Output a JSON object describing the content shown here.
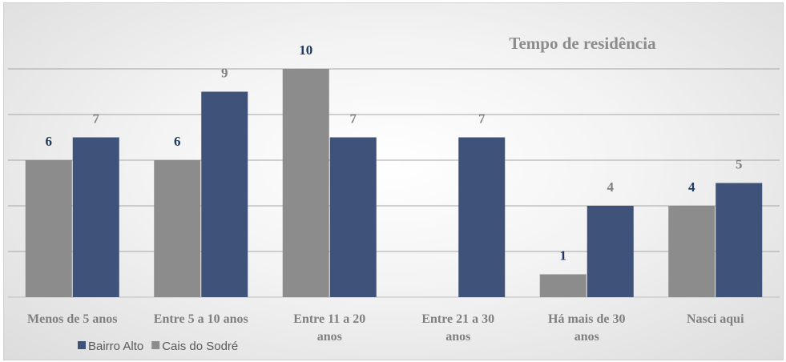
{
  "chart_data": {
    "type": "bar",
    "title": "Tempo de residência",
    "categories": [
      [
        "Menos de 5 anos"
      ],
      [
        "Entre 5 a 10 anos"
      ],
      [
        "Entre 11 a 20",
        "anos"
      ],
      [
        "Entre 21 a 30",
        "anos"
      ],
      [
        "Há mais de 30",
        "anos"
      ],
      [
        "Nasci aqui"
      ]
    ],
    "series": [
      {
        "name": "Cais do Sodré",
        "color": "#8c8c8c",
        "label_color": "#203864",
        "values": [
          6,
          6,
          10,
          null,
          1,
          4
        ]
      },
      {
        "name": "Bairro Alto",
        "color": "#3f527a",
        "label_color": "#7f7f7f",
        "values": [
          7,
          9,
          7,
          7,
          4,
          5
        ]
      }
    ],
    "legend_order": [
      "Bairro Alto",
      "Cais do Sodré"
    ],
    "legend_position": "bottom-left",
    "ylim": [
      0,
      11
    ],
    "grid": true,
    "y_axis_labels_shown": false
  }
}
